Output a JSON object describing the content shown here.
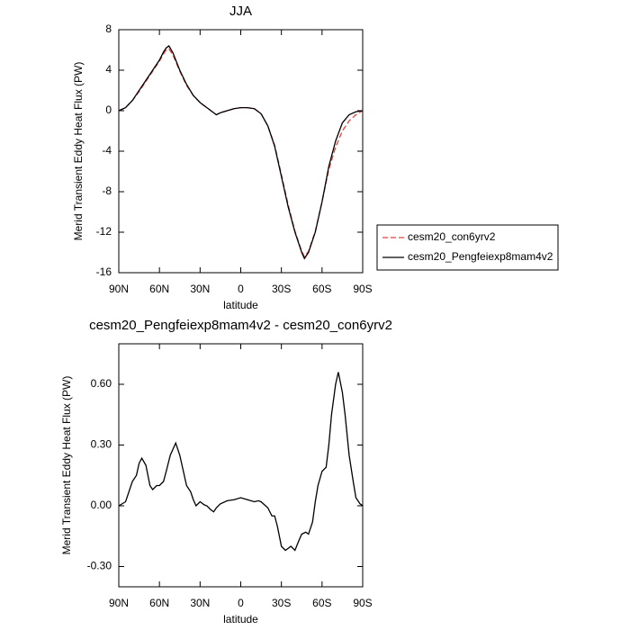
{
  "chart_data": [
    {
      "type": "line",
      "title": "JJA",
      "xlabel": "latitude",
      "ylabel": "Merid Transient Eddy Heat Flux (PW)",
      "x": [
        90,
        85,
        80,
        75,
        70,
        65,
        60,
        57,
        55,
        53,
        50,
        45,
        40,
        35,
        30,
        25,
        20,
        18,
        15,
        10,
        5,
        0,
        -5,
        -10,
        -15,
        -20,
        -25,
        -30,
        -35,
        -40,
        -45,
        -47,
        -50,
        -55,
        -60,
        -65,
        -70,
        -75,
        -80,
        -85,
        -90
      ],
      "series": [
        {
          "name": "cesm20_con6yrv2",
          "color": "#e8413a",
          "dashed": true,
          "values": [
            0,
            0.3,
            1.0,
            1.9,
            2.9,
            3.9,
            4.9,
            5.6,
            6.0,
            6.1,
            5.5,
            3.9,
            2.5,
            1.5,
            0.8,
            0.3,
            -0.2,
            -0.4,
            -0.2,
            0.0,
            0.2,
            0.3,
            0.3,
            0.2,
            -0.3,
            -1.5,
            -3.4,
            -6.3,
            -9.3,
            -11.9,
            -13.9,
            -14.4,
            -13.9,
            -11.9,
            -9.0,
            -5.8,
            -3.6,
            -2.0,
            -1.0,
            -0.4,
            0
          ]
        },
        {
          "name": "cesm20_Pengfeiexp8mam4v2",
          "color": "#000000",
          "dashed": false,
          "values": [
            0,
            0.3,
            1.0,
            2.0,
            3.0,
            4.0,
            5.0,
            5.8,
            6.2,
            6.4,
            5.7,
            4.0,
            2.6,
            1.5,
            0.8,
            0.3,
            -0.2,
            -0.4,
            -0.2,
            0.0,
            0.2,
            0.3,
            0.3,
            0.2,
            -0.3,
            -1.5,
            -3.5,
            -6.5,
            -9.5,
            -12.0,
            -14.0,
            -14.6,
            -14.0,
            -12.0,
            -9.0,
            -5.5,
            -3.0,
            -1.2,
            -0.4,
            -0.1,
            0
          ]
        }
      ],
      "xlim": [
        90,
        -90
      ],
      "xticks": [
        {
          "value": 90,
          "label": "90N"
        },
        {
          "value": 60,
          "label": "60N"
        },
        {
          "value": 30,
          "label": "30N"
        },
        0,
        {
          "value": -30,
          "label": "30S"
        },
        {
          "value": -60,
          "label": "60S"
        },
        {
          "value": -90,
          "label": "90S"
        }
      ],
      "ylim": [
        -16,
        8
      ],
      "yticks": [
        8,
        4,
        0,
        -4,
        -8,
        -12,
        -16
      ],
      "legend": "right"
    },
    {
      "type": "line",
      "title": "cesm20_Pengfeiexp8mam4v2 - cesm20_con6yrv2",
      "xlabel": "latitude",
      "ylabel": "Merid Transient Eddy Heat Flux (PW)",
      "x": [
        90,
        85,
        80,
        77,
        75,
        73,
        70,
        67,
        65,
        62,
        60,
        57,
        55,
        52,
        50,
        48,
        45,
        42,
        40,
        37,
        35,
        33,
        30,
        27,
        25,
        22,
        20,
        18,
        15,
        10,
        5,
        0,
        -5,
        -10,
        -13,
        -15,
        -20,
        -23,
        -25,
        -27,
        -30,
        -33,
        -35,
        -37,
        -40,
        -43,
        -45,
        -48,
        -50,
        -53,
        -55,
        -57,
        -60,
        -63,
        -65,
        -67,
        -70,
        -72,
        -75,
        -77,
        -80,
        -83,
        -85,
        -88,
        -90
      ],
      "series": [
        {
          "name": "cesm20_Pengfeiexp8mam4v2 - cesm20_con6yrv2",
          "color": "#000000",
          "dashed": false,
          "values": [
            0,
            0.02,
            0.12,
            0.15,
            0.21,
            0.235,
            0.2,
            0.1,
            0.08,
            0.1,
            0.1,
            0.12,
            0.17,
            0.25,
            0.28,
            0.31,
            0.25,
            0.16,
            0.1,
            0.07,
            0.03,
            0.0,
            0.02,
            0.005,
            0.0,
            -0.02,
            -0.03,
            -0.01,
            0.01,
            0.025,
            0.03,
            0.04,
            0.03,
            0.02,
            0.025,
            0.02,
            -0.01,
            -0.05,
            -0.05,
            -0.1,
            -0.2,
            -0.22,
            -0.21,
            -0.2,
            -0.22,
            -0.17,
            -0.14,
            -0.13,
            -0.14,
            -0.08,
            0.02,
            0.1,
            0.17,
            0.19,
            0.3,
            0.45,
            0.6,
            0.66,
            0.56,
            0.45,
            0.25,
            0.12,
            0.04,
            0.01,
            0
          ]
        }
      ],
      "xlim": [
        90,
        -90
      ],
      "xticks": [
        {
          "value": 90,
          "label": "90N"
        },
        {
          "value": 60,
          "label": "60N"
        },
        {
          "value": 30,
          "label": "30N"
        },
        0,
        {
          "value": -30,
          "label": "30S"
        },
        {
          "value": -60,
          "label": "60S"
        },
        {
          "value": -90,
          "label": "90S"
        }
      ],
      "ylim": [
        -0.4,
        0.8
      ],
      "yticks": [
        {
          "value": 0.6,
          "label": "0.60"
        },
        {
          "value": 0.3,
          "label": "0.30"
        },
        {
          "value": 0,
          "label": "0.00"
        },
        {
          "value": -0.3,
          "label": "-0.30"
        }
      ]
    }
  ]
}
